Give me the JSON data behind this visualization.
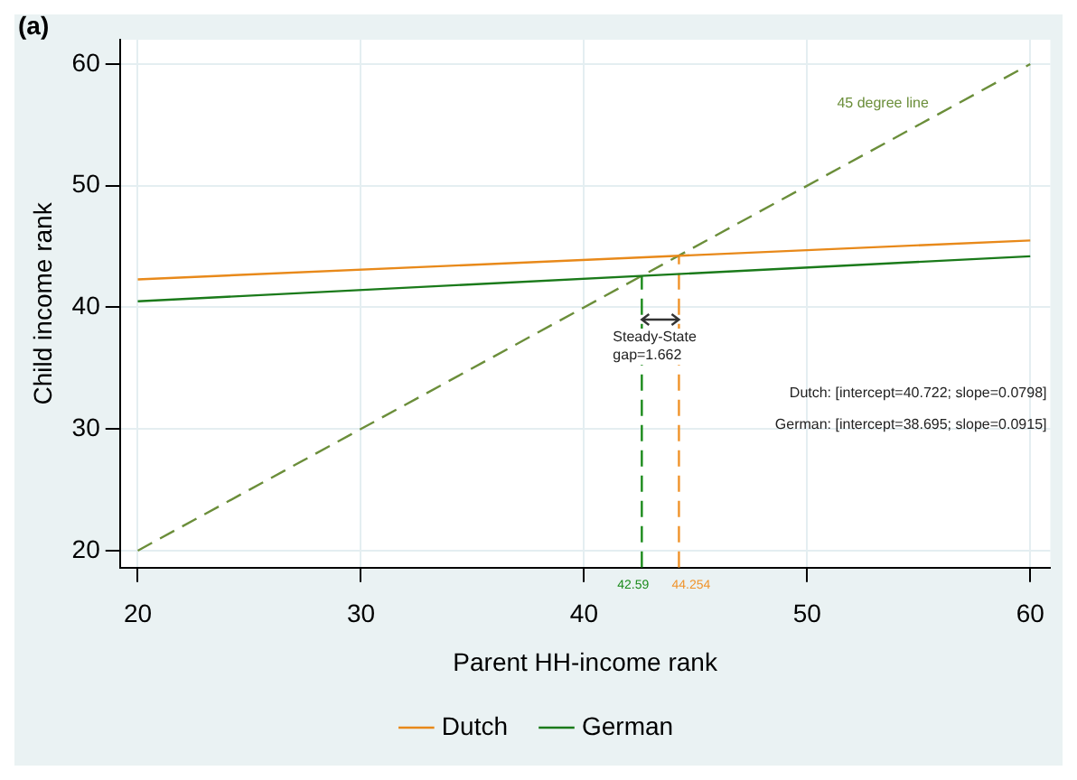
{
  "chart_data": {
    "type": "line",
    "title": "(a)",
    "xlabel": "Parent HH-income rank",
    "ylabel": "Child income rank",
    "xlim": [
      19.2,
      60.9
    ],
    "ylim": [
      18.6,
      62
    ],
    "xticks": [
      20,
      30,
      40,
      50,
      60
    ],
    "yticks": [
      20,
      30,
      40,
      50,
      60
    ],
    "grid": true,
    "legend": "bottom",
    "marker": "none",
    "series": [
      {
        "name": "Dutch",
        "color": "#e8891a",
        "x": [
          20,
          60
        ],
        "values": [
          42.3,
          45.5
        ],
        "line_style": "solid"
      },
      {
        "name": "German",
        "color": "#1a7a1a",
        "x": [
          20,
          60
        ],
        "values": [
          40.5,
          44.2
        ],
        "line_style": "solid"
      },
      {
        "color": "#6b8e3a",
        "x": [
          20,
          60
        ],
        "values": [
          20,
          60
        ],
        "line_style": "dashed"
      },
      {
        "color": "#1a8a1a",
        "x": [
          42.59,
          42.59
        ],
        "values": [
          18.6,
          42.6
        ],
        "line_style": "dashed"
      },
      {
        "color": "#f0932a",
        "x": [
          44.254,
          44.254
        ],
        "values": [
          18.6,
          44.3
        ],
        "line_style": "dashed"
      }
    ],
    "annotations": [
      "45 degree line",
      "Steady-State gap=1.662",
      "42.59",
      "44.254",
      "Dutch: [intercept=40.722; slope=0.0798]",
      "German: [intercept=38.695; slope=0.0915]"
    ]
  }
}
